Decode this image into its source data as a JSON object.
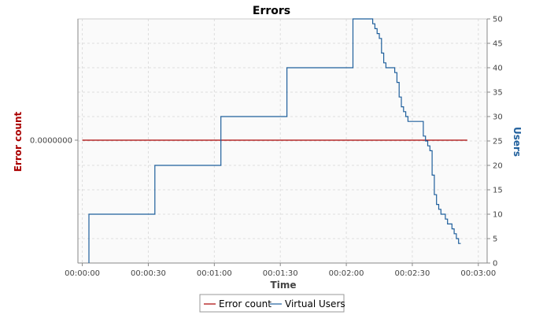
{
  "chart_data": {
    "type": "line",
    "title": "Errors",
    "xlabel": "Time",
    "ylabel_left": "Error count",
    "ylabel_right": "Users",
    "x_unit": "seconds",
    "xlim": [
      -2,
      184
    ],
    "x_ticks": [
      {
        "value": 0,
        "label": "00:00:00"
      },
      {
        "value": 30,
        "label": "00:00:30"
      },
      {
        "value": 60,
        "label": "00:01:00"
      },
      {
        "value": 90,
        "label": "00:01:30"
      },
      {
        "value": 120,
        "label": "00:02:00"
      },
      {
        "value": 150,
        "label": "00:02:30"
      },
      {
        "value": 180,
        "label": "00:03:00"
      }
    ],
    "y_left_ticks": [
      {
        "value": 0,
        "label": "0.0000000"
      }
    ],
    "ylim_right": [
      0,
      50
    ],
    "y_right_ticks": [
      0,
      5,
      10,
      15,
      20,
      25,
      30,
      35,
      40,
      45,
      50
    ],
    "grid": true,
    "legend_position": "bottom",
    "series": [
      {
        "name": "Error count",
        "axis": "left",
        "color": "#aa0000",
        "step": false,
        "x": [
          0,
          175
        ],
        "y": [
          0,
          0
        ]
      },
      {
        "name": "Virtual Users",
        "axis": "right",
        "color": "#1f5f9c",
        "step": true,
        "x": [
          3,
          3,
          33,
          63,
          93,
          123,
          132,
          133,
          134,
          135,
          136,
          137,
          138,
          142,
          143,
          144,
          145,
          146,
          147,
          148,
          149,
          155,
          156,
          157,
          158,
          159,
          160,
          161,
          162,
          163,
          164,
          165,
          166,
          168,
          169,
          170,
          171,
          172
        ],
        "y": [
          0,
          10,
          20,
          30,
          40,
          50,
          49,
          48,
          47,
          46,
          43,
          41,
          40,
          39,
          37,
          34,
          32,
          31,
          30,
          29,
          29,
          26,
          25,
          24,
          23,
          18,
          14,
          12,
          11,
          10,
          10,
          9,
          8,
          7,
          6,
          5,
          4,
          4
        ]
      }
    ]
  }
}
